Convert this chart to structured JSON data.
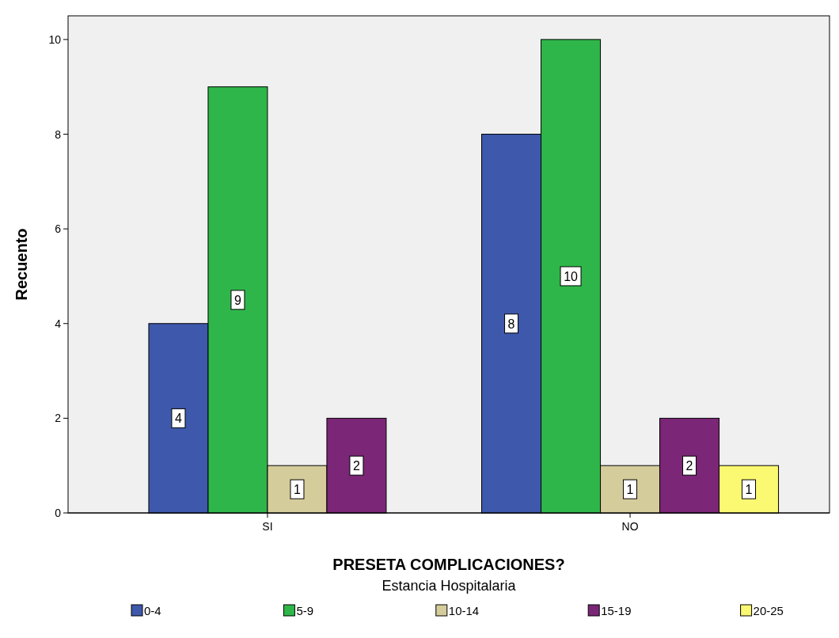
{
  "chart_data": {
    "type": "bar",
    "xlabel": "PRESETA COMPLICACIONES?",
    "ylabel": "Recuento",
    "legend_title": "Estancia Hospitalaria",
    "categories": [
      "SI",
      "NO"
    ],
    "series": [
      {
        "name": "0-4",
        "color": "#3e58ac",
        "values": [
          4,
          8
        ]
      },
      {
        "name": "5-9",
        "color": "#2fb64a",
        "values": [
          9,
          10
        ]
      },
      {
        "name": "10-14",
        "color": "#d5cc9b",
        "values": [
          1,
          1
        ]
      },
      {
        "name": "15-19",
        "color": "#7b2677",
        "values": [
          2,
          2
        ]
      },
      {
        "name": "20-25",
        "color": "#fbf872",
        "values": [
          null,
          1
        ]
      }
    ],
    "ylim": [
      0,
      10.5
    ],
    "yticks": [
      0,
      2,
      4,
      6,
      8,
      10
    ],
    "grid": false,
    "legend": "bottom",
    "data_labels": true
  }
}
